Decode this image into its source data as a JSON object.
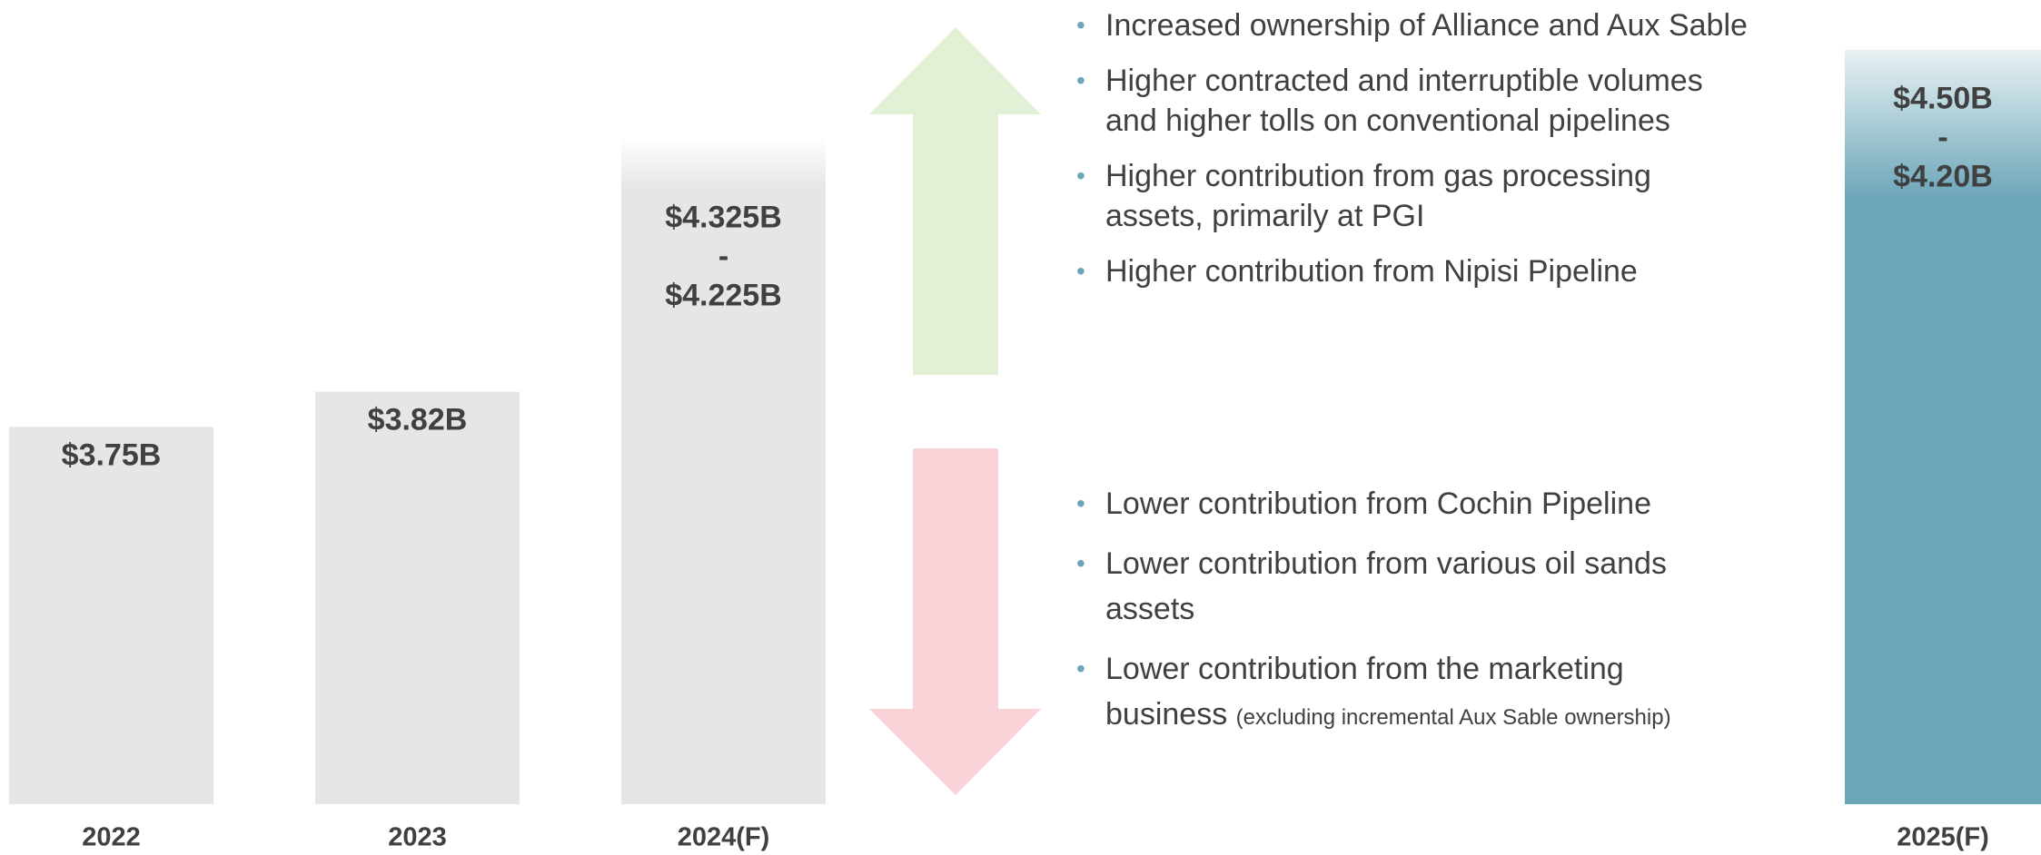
{
  "chart_data": {
    "type": "range_bar",
    "ylim": [
      3.0,
      4.55
    ],
    "bars": [
      {
        "category": "2022",
        "value": 3.75,
        "value_label": "$3.75B",
        "color": "#e6e6e6"
      },
      {
        "category": "2023",
        "value": 3.82,
        "value_label": "$3.82B",
        "color": "#e6e6e6"
      },
      {
        "category": "2024(F)",
        "high": 4.325,
        "low": 4.225,
        "high_label": "$4.325B",
        "separator": "-",
        "low_label": "$4.225B",
        "color": "#e6e6e6"
      },
      {
        "category": "2025(F)",
        "high": 4.5,
        "low": 4.2,
        "high_label": "$4.50B",
        "separator": "-",
        "low_label": "$4.20B",
        "color": "#6aa5b8"
      }
    ],
    "upside": [
      {
        "text": "Increased ownership of Alliance and Aux Sable"
      },
      {
        "text": "Higher contracted and interruptible volumes and higher tolls on conventional pipelines"
      },
      {
        "text": "Higher contribution from gas processing assets, primarily at PGI"
      },
      {
        "text": "Higher contribution from Nipisi Pipeline"
      }
    ],
    "downside": [
      {
        "text": "Lower contribution from Cochin Pipeline"
      },
      {
        "text": "Lower contribution from various oil sands assets"
      },
      {
        "text": "Lower contribution from the marketing business",
        "note": "(excluding incremental Aux Sable ownership)"
      }
    ]
  }
}
